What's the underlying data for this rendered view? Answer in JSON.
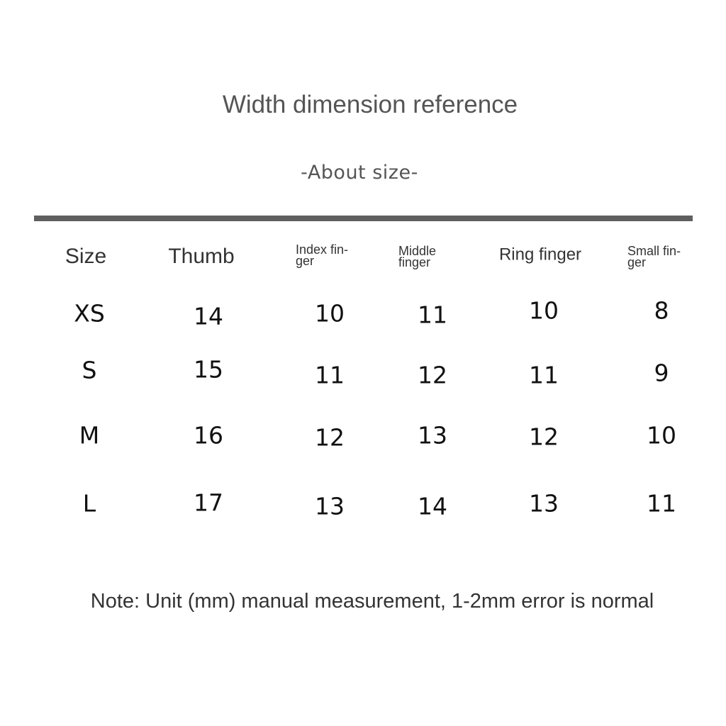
{
  "title": "Width dimension reference",
  "subtitle": "-About size-",
  "table": {
    "headers": [
      "Size",
      "Thumb",
      "Index fin-\nger",
      "Middle\nfinger",
      "Ring finger",
      "Small fin-\nger"
    ],
    "rows": [
      [
        "XS",
        "14",
        "10",
        "11",
        "10",
        "8"
      ],
      [
        "S",
        "15",
        "11",
        "12",
        "11",
        "9"
      ],
      [
        "M",
        "16",
        "12",
        "13",
        "12",
        "10"
      ],
      [
        "L",
        "17",
        "13",
        "14",
        "13",
        "11"
      ]
    ]
  },
  "note": "Note: Unit (mm) manual measurement, 1-2mm error is normal"
}
